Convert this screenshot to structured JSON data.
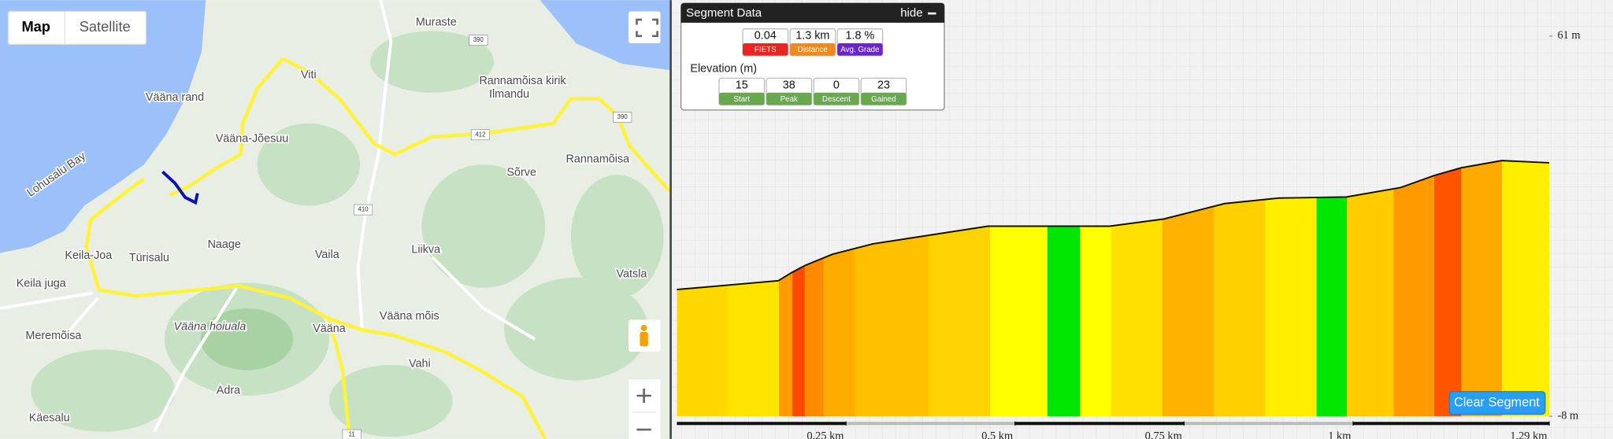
{
  "map": {
    "buttons": [
      "Map",
      "Satellite"
    ],
    "places": [
      "Muraste",
      "Viti",
      "Ilmandu",
      "Rannamõisa kirik",
      "Vääna rand",
      "Vääna-Jõesuu",
      "Lohusalu Bay",
      "Rannamõisa",
      "Sõrve",
      "Naage",
      "Vaila",
      "Liikva",
      "Keila-Joa",
      "Türisalu",
      "Keila juga",
      "Vatsla",
      "Meremõisa",
      "Vääna hoiuala",
      "Vääna",
      "Vääna mõis",
      "Vahi",
      "Adra",
      "Käesalu"
    ],
    "roads": [
      "390",
      "390",
      "412",
      "410",
      "11"
    ]
  },
  "segment_panel": {
    "title": "Segment Data",
    "hide": "hide",
    "stats": [
      {
        "value": "0.04",
        "label": "FIETS"
      },
      {
        "value": "1.3 km",
        "label": "Distance"
      },
      {
        "value": "1.8 %",
        "label": "Avg. Grade"
      }
    ],
    "elevation_title": "Elevation (m)",
    "elevation_stats": [
      {
        "value": "15",
        "label": "Start"
      },
      {
        "value": "38",
        "label": "Peak"
      },
      {
        "value": "0",
        "label": "Descent"
      },
      {
        "value": "23",
        "label": "Gained"
      }
    ]
  },
  "clear_button": "Clear Segment",
  "chart_data": {
    "type": "area",
    "x": [
      0,
      0.15,
      0.17,
      0.19,
      0.23,
      0.29,
      0.37,
      0.46,
      0.64,
      0.72,
      0.81,
      0.89,
      0.99,
      1.07,
      1.12,
      1.16,
      1.22,
      1.29
    ],
    "values": [
      15,
      16.6,
      18.1,
      19.4,
      21.4,
      23.3,
      24.8,
      26.5,
      26.5,
      27.8,
      30.6,
      31.6,
      31.8,
      33.5,
      35.7,
      37.1,
      38.4,
      38
    ],
    "xlim": [
      0,
      1.29
    ],
    "ylim": [
      -8,
      61
    ],
    "xticks": [
      {
        "value": 0.25,
        "label": "0.25 km"
      },
      {
        "value": 0.5,
        "label": "0.5 km"
      },
      {
        "value": 0.75,
        "label": "0.75 km"
      },
      {
        "value": 1,
        "label": "1 km"
      },
      {
        "value": 1.29,
        "label": "1.29 km"
      }
    ],
    "yticks": [
      {
        "value": 61,
        "label": "61 m"
      },
      {
        "value": -8,
        "label": "-8 m"
      }
    ],
    "strip_edges": [
      0,
      0.075,
      0.151,
      0.171,
      0.189,
      0.217,
      0.262,
      0.372,
      0.463,
      0.548,
      0.596,
      0.642,
      0.718,
      0.794,
      0.87,
      0.946,
      0.991,
      1.06,
      1.12,
      1.16,
      1.22,
      1.29
    ],
    "strip_colors": [
      "#ffd800",
      "#ffe400",
      "#ff9a00",
      "#ff4a00",
      "#ff8a00",
      "#ffab00",
      "#ffc000",
      "#ffd200",
      "#ffff00",
      "#00e600",
      "#ffff00",
      "#ffe000",
      "#ffb300",
      "#ffd000",
      "#ffee00",
      "#00e600",
      "#ffcc00",
      "#ff9a00",
      "#ff5500",
      "#ffaa00",
      "#ffee00"
    ],
    "line_color": "#111111"
  }
}
